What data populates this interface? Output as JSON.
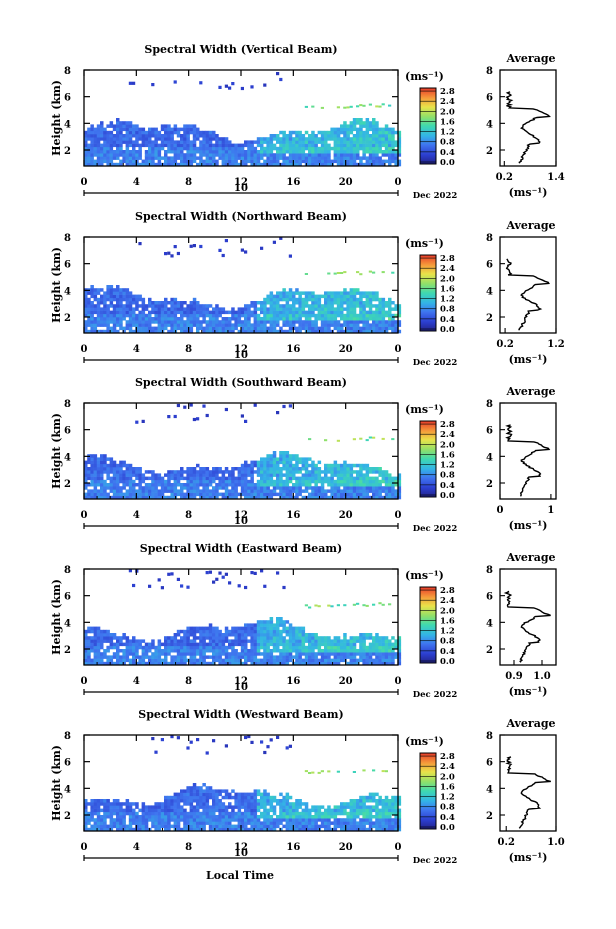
{
  "figure": {
    "x_label": "Local Time",
    "date_label": "Dec 2022",
    "day_label": "10",
    "y_label": "Height (km)",
    "unit_label": "(ms⁻¹)",
    "avg_title": "Average"
  },
  "chart_data": [
    {
      "type": "heatmap",
      "title": "Spectral Width (Vertical Beam)",
      "xlabel": "",
      "ylabel": "Height (km)",
      "xlim": [
        0,
        24
      ],
      "ylim": [
        0.8,
        8.0
      ],
      "x_ticks": [
        "0",
        "4",
        "8",
        "12",
        "16",
        "20",
        "0"
      ],
      "y_ticks": [
        "2",
        "4",
        "6",
        "8"
      ],
      "colorbar": {
        "ticks": [
          "0.0",
          "0.4",
          "0.8",
          "1.2",
          "1.6",
          "2.0",
          "2.4",
          "2.8"
        ],
        "range": [
          0,
          3.0
        ]
      },
      "profile": {
        "title": "Average",
        "xlabel": "(ms⁻¹)",
        "xlim": [
          0.1,
          1.4
        ],
        "x_ticks": [
          "0.2",
          "1.4"
        ],
        "ylim": [
          0.8,
          8.0
        ],
        "y_ticks": [
          "2",
          "4",
          "6",
          "8"
        ]
      }
    },
    {
      "type": "heatmap",
      "title": "Spectral Width (Northward Beam)",
      "xlabel": "",
      "ylabel": "Height (km)",
      "xlim": [
        0,
        24
      ],
      "ylim": [
        0.8,
        8.0
      ],
      "x_ticks": [
        "0",
        "4",
        "8",
        "12",
        "16",
        "20",
        "0"
      ],
      "y_ticks": [
        "2",
        "4",
        "6",
        "8"
      ],
      "colorbar": {
        "ticks": [
          "0.0",
          "0.4",
          "0.8",
          "1.2",
          "1.6",
          "2.0",
          "2.4",
          "2.8"
        ],
        "range": [
          0,
          3.0
        ]
      },
      "profile": {
        "title": "Average",
        "xlabel": "(ms⁻¹)",
        "xlim": [
          0.1,
          1.2
        ],
        "x_ticks": [
          "0.2",
          "1.2"
        ],
        "ylim": [
          0.8,
          8.0
        ],
        "y_ticks": [
          "2",
          "4",
          "6",
          "8"
        ]
      }
    },
    {
      "type": "heatmap",
      "title": "Spectral Width (Southward Beam)",
      "xlabel": "",
      "ylabel": "Height (km)",
      "xlim": [
        0,
        24
      ],
      "ylim": [
        0.8,
        8.0
      ],
      "x_ticks": [
        "0",
        "4",
        "8",
        "12",
        "16",
        "20",
        "0"
      ],
      "y_ticks": [
        "2",
        "4",
        "6",
        "8"
      ],
      "colorbar": {
        "ticks": [
          "0.0",
          "0.4",
          "0.8",
          "1.2",
          "1.6",
          "2.0",
          "2.4",
          "2.8"
        ],
        "range": [
          0,
          3.0
        ]
      },
      "profile": {
        "title": "Average",
        "xlabel": "(ms⁻¹)",
        "xlim": [
          0.0,
          1.1
        ],
        "x_ticks": [
          "0",
          "1"
        ],
        "ylim": [
          0.8,
          8.0
        ],
        "y_ticks": [
          "2",
          "4",
          "6",
          "8"
        ]
      }
    },
    {
      "type": "heatmap",
      "title": "Spectral Width (Eastward Beam)",
      "xlabel": "",
      "ylabel": "Height (km)",
      "xlim": [
        0,
        24
      ],
      "ylim": [
        0.8,
        8.0
      ],
      "x_ticks": [
        "0",
        "4",
        "8",
        "12",
        "16",
        "20",
        "0"
      ],
      "y_ticks": [
        "2",
        "4",
        "6",
        "8"
      ],
      "colorbar": {
        "ticks": [
          "0.0",
          "0.4",
          "0.8",
          "1.2",
          "1.6",
          "2.0",
          "2.4",
          "2.8"
        ],
        "range": [
          0,
          3.0
        ]
      },
      "profile": {
        "title": "Average",
        "xlabel": "(ms⁻¹)",
        "xlim": [
          0.85,
          1.05
        ],
        "x_ticks": [
          "0.9",
          "1.0"
        ],
        "ylim": [
          0.8,
          8.0
        ],
        "y_ticks": [
          "2",
          "4",
          "6",
          "8"
        ]
      }
    },
    {
      "type": "heatmap",
      "title": "Spectral Width (Westward Beam)",
      "xlabel": "Local Time",
      "ylabel": "Height (km)",
      "xlim": [
        0,
        24
      ],
      "ylim": [
        0.8,
        8.0
      ],
      "x_ticks": [
        "0",
        "4",
        "8",
        "12",
        "16",
        "20",
        "0"
      ],
      "y_ticks": [
        "2",
        "4",
        "6",
        "8"
      ],
      "colorbar": {
        "ticks": [
          "0.0",
          "0.4",
          "0.8",
          "1.2",
          "1.6",
          "2.0",
          "2.4",
          "2.8"
        ],
        "range": [
          0,
          3.0
        ]
      },
      "profile": {
        "title": "Average",
        "xlabel": "(ms⁻¹)",
        "xlim": [
          0.1,
          1.0
        ],
        "x_ticks": [
          "0.2",
          "1.0"
        ],
        "ylim": [
          0.8,
          8.0
        ],
        "y_ticks": [
          "2",
          "4",
          "6",
          "8"
        ]
      }
    }
  ]
}
